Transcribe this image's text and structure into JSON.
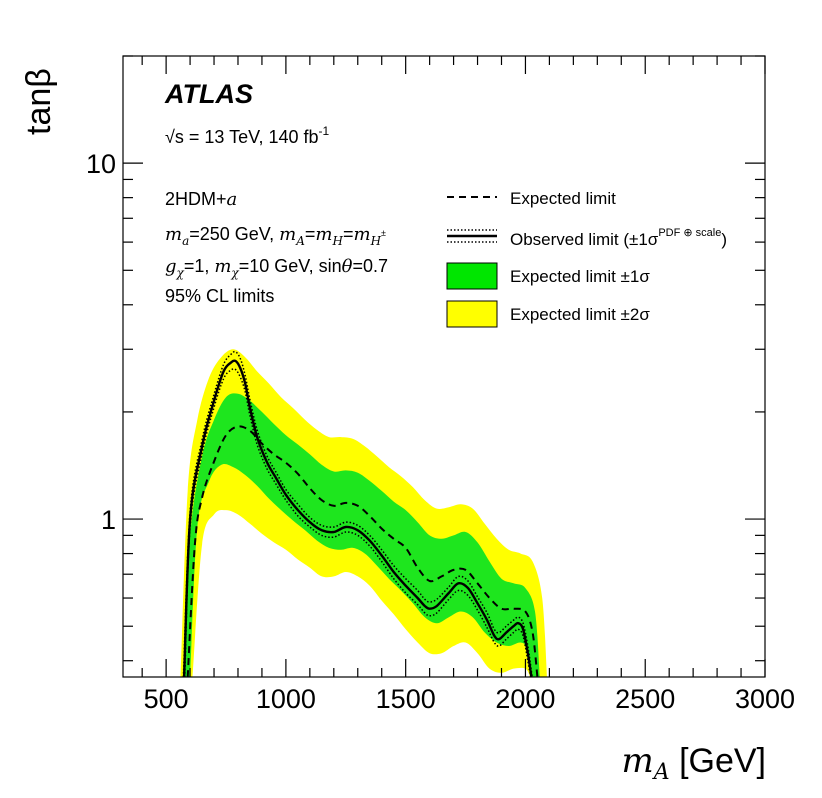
{
  "chart_data": {
    "type": "area",
    "experiment": "ATLAS",
    "energy_label": "√s = 13 TeV, 140 fb",
    "energy_sup": "-1",
    "model_lines": [
      "2HDM+a",
      "ma=250 GeV, mA=mH=mH±",
      "gχ=1, mχ=10 GeV, sinθ=0.7",
      "95% CL limits"
    ],
    "xlabel": "m_A [GeV]",
    "ylabel": "tanβ",
    "xlim": [
      320,
      3000
    ],
    "ylim": [
      0.36,
      20
    ],
    "yscale": "log",
    "x_ticks": [
      500,
      1000,
      1500,
      2000,
      2500,
      3000
    ],
    "x_tick_labels": [
      "500",
      "1000",
      "1500",
      "2000",
      "2500",
      "3000"
    ],
    "y_ticks": [
      1,
      10
    ],
    "y_tick_labels": [
      "1",
      "10"
    ],
    "legend": {
      "position": "top-right",
      "entries": [
        {
          "label": "Expected limit",
          "style": "dashed"
        },
        {
          "label": "Observed limit (±1σ",
          "sup": "PDF ⊕ scale",
          "suffix": ")",
          "style": "solid+dotted"
        },
        {
          "label": "Expected limit ±1σ",
          "style": "fill",
          "color": "#00e600"
        },
        {
          "label": "Expected limit ±2σ",
          "style": "fill",
          "color": "#ffff00"
        }
      ]
    },
    "colors": {
      "band_1sigma": "#1ee61e",
      "band_2sigma": "#ffff00",
      "line": "#000000"
    },
    "series": [
      {
        "name": "Expected limit",
        "x": [
          590,
          620,
          650,
          700,
          750,
          800,
          850,
          900,
          950,
          1000,
          1050,
          1100,
          1150,
          1200,
          1250,
          1300,
          1350,
          1400,
          1450,
          1500,
          1550,
          1600,
          1650,
          1700,
          1750,
          1800,
          1850,
          1900,
          1950,
          2000,
          2030,
          2050
        ],
        "y": [
          0.36,
          0.85,
          1.15,
          1.45,
          1.72,
          1.82,
          1.77,
          1.63,
          1.52,
          1.44,
          1.34,
          1.22,
          1.13,
          1.09,
          1.11,
          1.09,
          1.02,
          0.94,
          0.88,
          0.83,
          0.73,
          0.67,
          0.69,
          0.72,
          0.72,
          0.66,
          0.6,
          0.56,
          0.56,
          0.55,
          0.48,
          0.36
        ]
      },
      {
        "name": "Expected limit +1σ",
        "x": [
          570,
          600,
          650,
          700,
          750,
          800,
          850,
          900,
          950,
          1000,
          1050,
          1100,
          1150,
          1200,
          1250,
          1300,
          1350,
          1400,
          1450,
          1500,
          1550,
          1600,
          1650,
          1700,
          1750,
          1800,
          1850,
          1900,
          1950,
          2000,
          2040,
          2060
        ],
        "y": [
          0.36,
          0.9,
          1.5,
          1.9,
          2.2,
          2.25,
          2.15,
          2.0,
          1.85,
          1.72,
          1.62,
          1.52,
          1.42,
          1.36,
          1.37,
          1.35,
          1.28,
          1.2,
          1.12,
          1.06,
          0.98,
          0.9,
          0.88,
          0.9,
          0.92,
          0.86,
          0.76,
          0.68,
          0.66,
          0.64,
          0.55,
          0.36
        ]
      },
      {
        "name": "Expected limit -1σ",
        "x": [
          600,
          630,
          680,
          730,
          780,
          830,
          880,
          930,
          980,
          1030,
          1080,
          1130,
          1180,
          1230,
          1280,
          1330,
          1380,
          1430,
          1480,
          1530,
          1580,
          1630,
          1680,
          1730,
          1780,
          1830,
          1880,
          1930,
          1980,
          2010,
          2030
        ],
        "y": [
          0.36,
          0.95,
          1.28,
          1.42,
          1.4,
          1.33,
          1.24,
          1.14,
          1.06,
          0.99,
          0.93,
          0.87,
          0.83,
          0.82,
          0.83,
          0.8,
          0.74,
          0.68,
          0.63,
          0.58,
          0.53,
          0.51,
          0.53,
          0.55,
          0.53,
          0.48,
          0.45,
          0.44,
          0.45,
          0.43,
          0.36
        ]
      },
      {
        "name": "Expected limit +2σ",
        "x": [
          560,
          590,
          630,
          680,
          730,
          780,
          830,
          880,
          930,
          980,
          1030,
          1080,
          1130,
          1180,
          1230,
          1280,
          1330,
          1380,
          1430,
          1480,
          1530,
          1580,
          1630,
          1680,
          1730,
          1780,
          1830,
          1880,
          1930,
          1980,
          2030,
          2070,
          2090
        ],
        "y": [
          0.36,
          1.2,
          1.9,
          2.5,
          2.85,
          3.0,
          2.85,
          2.6,
          2.4,
          2.2,
          2.05,
          1.9,
          1.78,
          1.7,
          1.7,
          1.68,
          1.6,
          1.5,
          1.4,
          1.32,
          1.23,
          1.13,
          1.07,
          1.08,
          1.1,
          1.07,
          0.97,
          0.88,
          0.82,
          0.8,
          0.76,
          0.6,
          0.36
        ]
      },
      {
        "name": "Expected limit -2σ",
        "x": [
          610,
          650,
          700,
          750,
          800,
          850,
          900,
          950,
          1000,
          1050,
          1100,
          1150,
          1200,
          1250,
          1300,
          1350,
          1400,
          1450,
          1500,
          1550,
          1600,
          1650,
          1700,
          1750,
          1800,
          1850,
          1900,
          1950,
          2000,
          2020
        ],
        "y": [
          0.36,
          0.85,
          1.03,
          1.06,
          1.03,
          0.97,
          0.91,
          0.86,
          0.82,
          0.77,
          0.73,
          0.69,
          0.69,
          0.71,
          0.69,
          0.65,
          0.59,
          0.54,
          0.49,
          0.45,
          0.42,
          0.42,
          0.44,
          0.45,
          0.42,
          0.38,
          0.37,
          0.38,
          0.38,
          0.36
        ]
      },
      {
        "name": "Observed limit",
        "x": [
          575,
          600,
          650,
          700,
          740,
          770,
          790,
          810,
          830,
          850,
          880,
          920,
          960,
          1000,
          1050,
          1100,
          1150,
          1200,
          1250,
          1300,
          1350,
          1400,
          1450,
          1500,
          1550,
          1580,
          1600,
          1630,
          1680,
          1720,
          1760,
          1800,
          1840,
          1870,
          1890,
          1920,
          1950,
          1970,
          1990,
          2010,
          2025
        ],
        "y": [
          0.36,
          1.0,
          1.6,
          2.15,
          2.6,
          2.75,
          2.78,
          2.65,
          2.4,
          2.05,
          1.7,
          1.45,
          1.3,
          1.17,
          1.06,
          0.98,
          0.93,
          0.92,
          0.95,
          0.93,
          0.87,
          0.79,
          0.71,
          0.65,
          0.6,
          0.57,
          0.56,
          0.57,
          0.62,
          0.66,
          0.64,
          0.58,
          0.52,
          0.47,
          0.46,
          0.48,
          0.5,
          0.51,
          0.49,
          0.42,
          0.36
        ]
      },
      {
        "name": "Observed limit +1σ(PDF⊕scale)",
        "x": [
          572,
          600,
          650,
          700,
          740,
          770,
          790,
          810,
          830,
          850,
          880,
          920,
          960,
          1000,
          1050,
          1100,
          1150,
          1200,
          1250,
          1300,
          1350,
          1400,
          1450,
          1500,
          1550,
          1580,
          1600,
          1630,
          1680,
          1720,
          1760,
          1800,
          1840,
          1870,
          1890,
          1920,
          1950,
          1970,
          1990,
          2010,
          2028
        ],
        "y": [
          0.36,
          1.05,
          1.67,
          2.24,
          2.72,
          2.9,
          2.95,
          2.82,
          2.53,
          2.16,
          1.78,
          1.51,
          1.35,
          1.21,
          1.1,
          1.01,
          0.96,
          0.95,
          0.98,
          0.96,
          0.9,
          0.82,
          0.74,
          0.68,
          0.63,
          0.595,
          0.585,
          0.595,
          0.645,
          0.69,
          0.67,
          0.605,
          0.545,
          0.49,
          0.48,
          0.5,
          0.52,
          0.53,
          0.51,
          0.44,
          0.36
        ]
      },
      {
        "name": "Observed limit -1σ(PDF⊕scale)",
        "x": [
          578,
          600,
          650,
          700,
          740,
          770,
          790,
          810,
          830,
          850,
          880,
          920,
          960,
          1000,
          1050,
          1100,
          1150,
          1200,
          1250,
          1300,
          1350,
          1400,
          1450,
          1500,
          1550,
          1580,
          1600,
          1630,
          1680,
          1720,
          1760,
          1800,
          1840,
          1870,
          1890,
          1920,
          1950,
          1970,
          1990,
          2010,
          2022
        ],
        "y": [
          0.36,
          0.95,
          1.53,
          2.06,
          2.48,
          2.62,
          2.63,
          2.5,
          2.28,
          1.95,
          1.62,
          1.39,
          1.25,
          1.13,
          1.02,
          0.95,
          0.9,
          0.89,
          0.92,
          0.9,
          0.84,
          0.76,
          0.68,
          0.62,
          0.575,
          0.545,
          0.535,
          0.545,
          0.595,
          0.63,
          0.61,
          0.555,
          0.495,
          0.45,
          0.44,
          0.46,
          0.48,
          0.49,
          0.47,
          0.4,
          0.36
        ]
      }
    ]
  }
}
